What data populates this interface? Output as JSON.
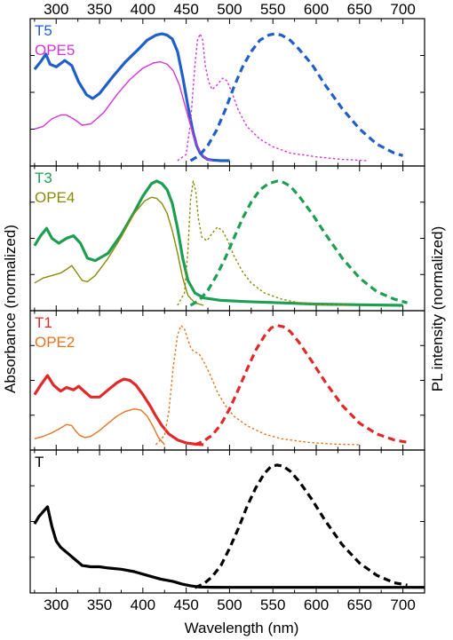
{
  "figure": {
    "xlabel": "Wavelength (nm)",
    "ylabel_left": "Absorbance (normalized)",
    "ylabel_right": "PL intensity (normalized)"
  },
  "chart_data": {
    "type": "line",
    "x_unit": "nm",
    "xlim": [
      270,
      725
    ],
    "xticks": [
      300,
      350,
      400,
      450,
      500,
      550,
      600,
      650,
      700
    ],
    "x_axis_labels": "top and bottom",
    "ylim": [
      0,
      1.05
    ],
    "grid": false,
    "panels": [
      {
        "legend": [
          {
            "label": "T5",
            "color": "#1f5fc8"
          },
          {
            "label": "OPE5",
            "color": "#d733d7"
          }
        ],
        "series": [
          {
            "name": "T5",
            "kind": "absorbance",
            "style": "solid-thick",
            "color": "#1f5fc8",
            "x": [
              275,
              282,
              288,
              293,
              300,
              310,
              318,
              326,
              335,
              342,
              350,
              365,
              380,
              395,
              405,
              415,
              422,
              428,
              434,
              440,
              446,
              452,
              458,
              462,
              466,
              470,
              475,
              480,
              490,
              500
            ],
            "y": [
              0.72,
              0.78,
              0.84,
              0.76,
              0.74,
              0.79,
              0.75,
              0.62,
              0.52,
              0.49,
              0.53,
              0.66,
              0.78,
              0.88,
              0.95,
              0.99,
              1.0,
              0.99,
              0.96,
              0.86,
              0.66,
              0.43,
              0.22,
              0.12,
              0.06,
              0.03,
              0.01,
              0.005,
              0.0,
              0.0
            ]
          },
          {
            "name": "OPE5",
            "kind": "absorbance",
            "style": "solid-thin",
            "color": "#d733d7",
            "x": [
              275,
              285,
              295,
              305,
              312,
              320,
              330,
              340,
              355,
              370,
              385,
              400,
              412,
              420,
              428,
              435,
              442,
              448,
              454,
              460,
              466,
              472,
              480
            ],
            "y": [
              0.25,
              0.27,
              0.33,
              0.36,
              0.36,
              0.33,
              0.28,
              0.29,
              0.38,
              0.52,
              0.64,
              0.73,
              0.77,
              0.78,
              0.76,
              0.71,
              0.6,
              0.45,
              0.3,
              0.16,
              0.07,
              0.02,
              0.0
            ]
          },
          {
            "name": "OPE5 PL",
            "kind": "emission",
            "style": "dotted-thin",
            "color": "#d733d7",
            "x": [
              440,
              450,
              455,
              460,
              463,
              466,
              469,
              472,
              476,
              480,
              486,
              492,
              497,
              502,
              510,
              520,
              535,
              550,
              570,
              600,
              630,
              660
            ],
            "y": [
              0.0,
              0.05,
              0.3,
              0.75,
              0.95,
              1.0,
              0.95,
              0.75,
              0.62,
              0.56,
              0.6,
              0.65,
              0.63,
              0.55,
              0.4,
              0.27,
              0.17,
              0.11,
              0.06,
              0.03,
              0.01,
              0.0
            ]
          },
          {
            "name": "T5 PL",
            "kind": "emission",
            "style": "dashed-thick",
            "color": "#1f5fc8",
            "x": [
              455,
              465,
              475,
              485,
              495,
              505,
              515,
              525,
              535,
              545,
              552,
              560,
              570,
              580,
              595,
              610,
              630,
              650,
              670,
              690,
              700
            ],
            "y": [
              0.0,
              0.04,
              0.12,
              0.24,
              0.4,
              0.58,
              0.74,
              0.86,
              0.95,
              0.99,
              1.0,
              0.99,
              0.95,
              0.88,
              0.76,
              0.6,
              0.41,
              0.25,
              0.13,
              0.06,
              0.04
            ]
          }
        ]
      },
      {
        "legend": [
          {
            "label": "T3",
            "color": "#1e9e52"
          },
          {
            "label": "OPE4",
            "color": "#8a8a0a"
          }
        ],
        "series": [
          {
            "name": "T3",
            "kind": "absorbance",
            "style": "solid-thick",
            "color": "#1e9e52",
            "x": [
              275,
              282,
              289,
              295,
              303,
              312,
              320,
              328,
              336,
              345,
              360,
              375,
              390,
              400,
              410,
              416,
              422,
              428,
              434,
              440,
              446,
              452,
              460,
              470,
              490,
              520,
              560,
              600,
              650,
              700
            ],
            "y": [
              0.48,
              0.56,
              0.62,
              0.54,
              0.5,
              0.54,
              0.56,
              0.5,
              0.38,
              0.36,
              0.42,
              0.57,
              0.75,
              0.88,
              0.98,
              1.0,
              0.98,
              0.93,
              0.82,
              0.62,
              0.38,
              0.2,
              0.1,
              0.06,
              0.04,
              0.03,
              0.02,
              0.01,
              0.005,
              0.0
            ]
          },
          {
            "name": "OPE4",
            "kind": "absorbance",
            "style": "solid-thin",
            "color": "#8a8a0a",
            "x": [
              275,
              285,
              295,
              305,
              312,
              318,
              324,
              330,
              336,
              345,
              360,
              375,
              390,
              402,
              410,
              416,
              422,
              428,
              434,
              440,
              446,
              452,
              460,
              470
            ],
            "y": [
              0.18,
              0.22,
              0.24,
              0.26,
              0.29,
              0.32,
              0.26,
              0.2,
              0.19,
              0.24,
              0.38,
              0.55,
              0.74,
              0.84,
              0.87,
              0.86,
              0.82,
              0.74,
              0.6,
              0.42,
              0.22,
              0.08,
              0.02,
              0.0
            ]
          },
          {
            "name": "OPE4 PL",
            "kind": "emission",
            "style": "dotted-thin",
            "color": "#8a8a0a",
            "x": [
              440,
              448,
              452,
              455,
              458,
              461,
              464,
              468,
              474,
              480,
              486,
              492,
              498,
              505,
              515,
              525,
              540,
              560,
              580,
              610,
              640
            ],
            "y": [
              0.0,
              0.1,
              0.45,
              0.85,
              1.0,
              0.92,
              0.7,
              0.55,
              0.52,
              0.58,
              0.63,
              0.6,
              0.52,
              0.4,
              0.27,
              0.18,
              0.1,
              0.05,
              0.02,
              0.005,
              0.0
            ]
          },
          {
            "name": "T3 PL",
            "kind": "emission",
            "style": "dashed-thick",
            "color": "#1e9e52",
            "x": [
              455,
              465,
              475,
              485,
              495,
              505,
              515,
              525,
              535,
              545,
              555,
              562,
              570,
              580,
              595,
              610,
              630,
              650,
              670,
              690,
              705
            ],
            "y": [
              0.0,
              0.04,
              0.12,
              0.24,
              0.38,
              0.54,
              0.7,
              0.83,
              0.93,
              0.98,
              1.0,
              0.99,
              0.96,
              0.88,
              0.74,
              0.58,
              0.38,
              0.22,
              0.11,
              0.05,
              0.02
            ]
          }
        ]
      },
      {
        "legend": [
          {
            "label": "T1",
            "color": "#e02a2a"
          },
          {
            "label": "OPE2",
            "color": "#e5731f"
          }
        ],
        "series": [
          {
            "name": "T1",
            "kind": "absorbance",
            "style": "solid-thick",
            "color": "#e02a2a",
            "x": [
              275,
              282,
              290,
              297,
              305,
              312,
              320,
              326,
              332,
              340,
              350,
              360,
              370,
              378,
              385,
              392,
              400,
              408,
              415,
              422,
              430,
              440,
              450,
              460,
              470
            ],
            "y": [
              0.42,
              0.5,
              0.58,
              0.5,
              0.45,
              0.48,
              0.46,
              0.49,
              0.45,
              0.4,
              0.4,
              0.46,
              0.52,
              0.55,
              0.54,
              0.5,
              0.42,
              0.33,
              0.24,
              0.16,
              0.09,
              0.04,
              0.015,
              0.005,
              0.0
            ]
          },
          {
            "name": "OPE2",
            "kind": "absorbance",
            "style": "solid-thin",
            "color": "#e5731f",
            "x": [
              275,
              285,
              295,
              305,
              312,
              318,
              322,
              327,
              333,
              340,
              350,
              360,
              370,
              380,
              390,
              398,
              405,
              412,
              418,
              425
            ],
            "y": [
              0.05,
              0.07,
              0.1,
              0.14,
              0.17,
              0.16,
              0.12,
              0.08,
              0.06,
              0.07,
              0.12,
              0.18,
              0.24,
              0.28,
              0.3,
              0.29,
              0.24,
              0.15,
              0.06,
              0.0
            ]
          },
          {
            "name": "OPE2 PL",
            "kind": "emission",
            "style": "dotted-thin",
            "color": "#e5731f",
            "x": [
              415,
              425,
              430,
              435,
              440,
              444,
              448,
              452,
              456,
              460,
              465,
              470,
              478,
              486,
              495,
              505,
              520,
              540,
              560,
              590,
              620,
              650
            ],
            "y": [
              0.0,
              0.08,
              0.28,
              0.65,
              0.92,
              1.0,
              0.97,
              0.88,
              0.8,
              0.78,
              0.76,
              0.7,
              0.58,
              0.44,
              0.33,
              0.24,
              0.16,
              0.09,
              0.05,
              0.02,
              0.005,
              0.0
            ]
          },
          {
            "name": "T1 PL",
            "kind": "emission",
            "style": "dashed-thick",
            "color": "#e02a2a",
            "x": [
              460,
              470,
              480,
              490,
              500,
              510,
              520,
              530,
              540,
              548,
              555,
              562,
              570,
              580,
              595,
              610,
              630,
              650,
              670,
              690,
              705
            ],
            "y": [
              0.0,
              0.03,
              0.08,
              0.17,
              0.3,
              0.46,
              0.63,
              0.79,
              0.91,
              0.98,
              1.0,
              0.99,
              0.95,
              0.86,
              0.7,
              0.53,
              0.33,
              0.18,
              0.09,
              0.04,
              0.02
            ]
          }
        ]
      },
      {
        "legend": [
          {
            "label": "T",
            "color": "#000000"
          }
        ],
        "series": [
          {
            "name": "T",
            "kind": "absorbance",
            "style": "solid-thick",
            "color": "#000000",
            "x": [
              275,
              280,
              285,
              290,
              295,
              300,
              305,
              310,
              315,
              320,
              325,
              330,
              340,
              350,
              360,
              375,
              390,
              405,
              420,
              435,
              445,
              455,
              465,
              480,
              500,
              550,
              600,
              650,
              700,
              725
            ],
            "y": [
              0.52,
              0.58,
              0.62,
              0.66,
              0.5,
              0.38,
              0.33,
              0.3,
              0.27,
              0.24,
              0.21,
              0.18,
              0.17,
              0.17,
              0.16,
              0.15,
              0.13,
              0.1,
              0.07,
              0.05,
              0.03,
              0.015,
              0.005,
              0.003,
              0.002,
              0.002,
              0.002,
              0.002,
              0.002,
              0.002
            ]
          },
          {
            "name": "T PL",
            "kind": "emission",
            "style": "dashed-thick",
            "color": "#000000",
            "x": [
              460,
              470,
              480,
              490,
              500,
              510,
              520,
              530,
              540,
              548,
              555,
              562,
              570,
              580,
              595,
              610,
              630,
              650,
              670,
              690,
              705
            ],
            "y": [
              0.0,
              0.03,
              0.09,
              0.18,
              0.32,
              0.48,
              0.66,
              0.81,
              0.93,
              0.99,
              1.0,
              0.99,
              0.95,
              0.87,
              0.72,
              0.55,
              0.35,
              0.2,
              0.1,
              0.04,
              0.02
            ]
          }
        ]
      }
    ]
  }
}
